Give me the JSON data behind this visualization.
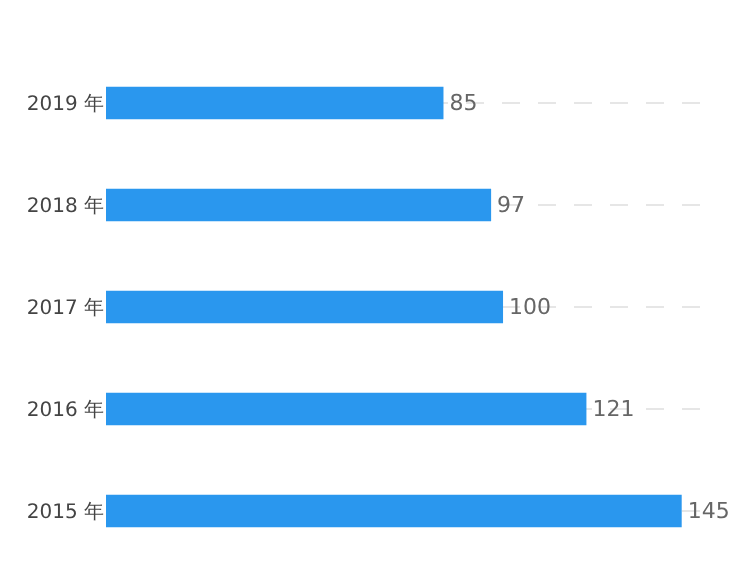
{
  "chart_data": {
    "type": "bar",
    "orientation": "horizontal",
    "categories": [
      "2019 年",
      "2018 年",
      "2017 年",
      "2016 年",
      "2015 年"
    ],
    "values": [
      85,
      97,
      100,
      121,
      145
    ],
    "color": "#2a97ee",
    "data_labels": true,
    "grid": "y"
  }
}
